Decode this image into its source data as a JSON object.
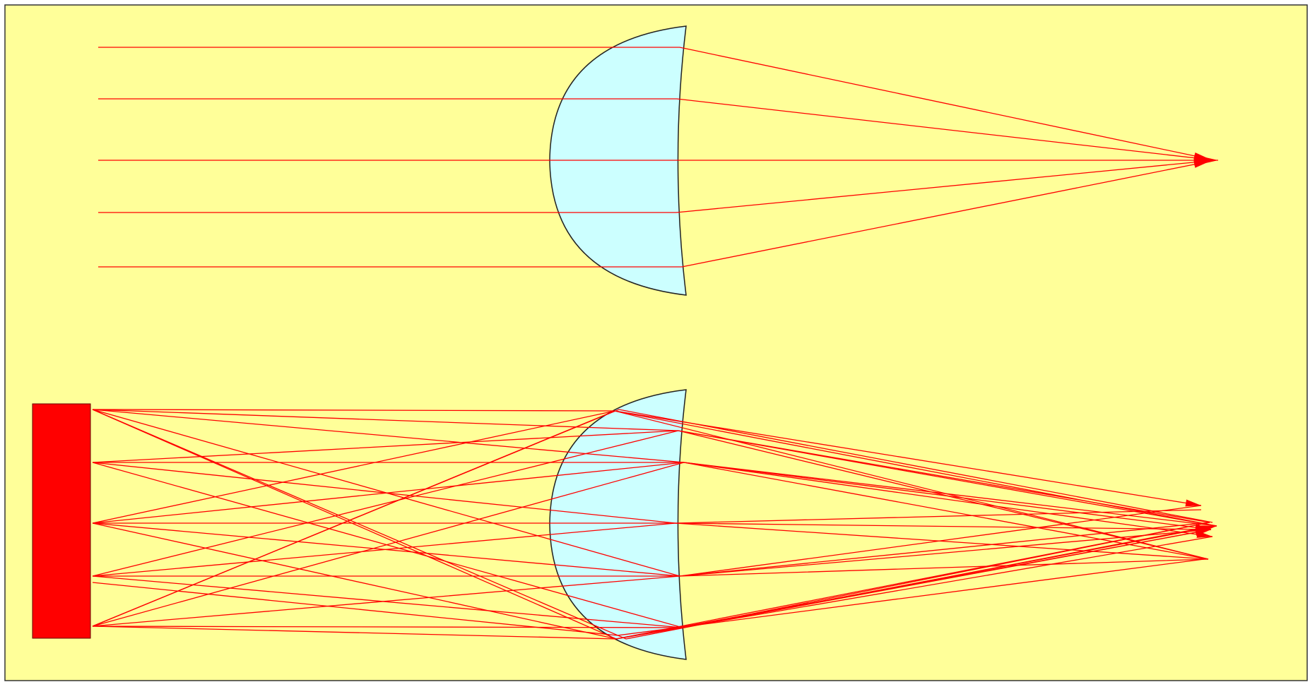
{
  "colors": {
    "background": "#ffff99",
    "frame": "#333333",
    "lens_fill": "#ccffff",
    "lens_outline": "#222222",
    "ray": "#ff0000",
    "source": "#ff0000"
  },
  "icons": {
    "top_lens": "lens-icon",
    "bottom_lens": "lens-icon",
    "light_source": "rectangle-icon",
    "arrowhead": "arrowhead-icon"
  }
}
